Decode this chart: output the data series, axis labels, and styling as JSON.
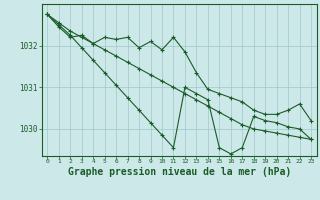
{
  "background_color": "#cce8e8",
  "grid_color": "#a0c8c8",
  "line_color": "#1a5c28",
  "xlabel": "Graphe pression niveau de la mer (hPa)",
  "xlabel_fontsize": 7,
  "ytick_labels": [
    "1030",
    "1031",
    "1032"
  ],
  "ytick_values": [
    1030,
    1031,
    1032
  ],
  "xtick_values": [
    0,
    1,
    2,
    3,
    4,
    5,
    6,
    7,
    8,
    9,
    10,
    11,
    12,
    13,
    14,
    15,
    16,
    17,
    18,
    19,
    20,
    21,
    22,
    23
  ],
  "xlim": [
    -0.5,
    23.5
  ],
  "ylim": [
    1029.35,
    1033.0
  ],
  "series1": {
    "x": [
      0,
      1,
      2,
      3,
      4,
      5,
      6,
      7,
      8,
      9,
      10,
      11,
      12,
      13,
      14,
      15,
      16,
      17,
      18,
      19,
      20,
      21,
      22,
      23
    ],
    "y": [
      1032.75,
      1032.45,
      1032.2,
      1032.25,
      1032.05,
      1032.2,
      1032.15,
      1032.2,
      1031.95,
      1032.1,
      1031.9,
      1032.2,
      1031.85,
      1031.35,
      1030.95,
      1030.85,
      1030.75,
      1030.65,
      1030.45,
      1030.35,
      1030.35,
      1030.45,
      1030.6,
      1030.2
    ]
  },
  "series2": {
    "x": [
      0,
      1,
      2,
      3,
      4,
      5,
      6,
      7,
      8,
      9,
      10,
      11,
      12,
      13,
      14,
      15,
      16,
      17,
      18,
      19,
      20,
      21,
      22,
      23
    ],
    "y": [
      1032.75,
      1032.55,
      1032.35,
      1032.2,
      1032.05,
      1031.9,
      1031.75,
      1031.6,
      1031.45,
      1031.3,
      1031.15,
      1031.0,
      1030.85,
      1030.7,
      1030.55,
      1030.4,
      1030.25,
      1030.1,
      1030.0,
      1029.95,
      1029.9,
      1029.85,
      1029.8,
      1029.75
    ]
  },
  "series3": {
    "x": [
      0,
      1,
      2,
      3,
      4,
      5,
      6,
      7,
      8,
      9,
      10,
      11,
      12,
      13,
      14,
      15,
      16,
      17,
      18,
      19,
      20,
      21,
      22,
      23
    ],
    "y": [
      1032.75,
      1032.5,
      1032.25,
      1031.95,
      1031.65,
      1031.35,
      1031.05,
      1030.75,
      1030.45,
      1030.15,
      1029.85,
      1029.55,
      1031.0,
      1030.85,
      1030.7,
      1029.55,
      1029.4,
      1029.55,
      1030.3,
      1030.2,
      1030.15,
      1030.05,
      1030.0,
      1029.75
    ]
  }
}
